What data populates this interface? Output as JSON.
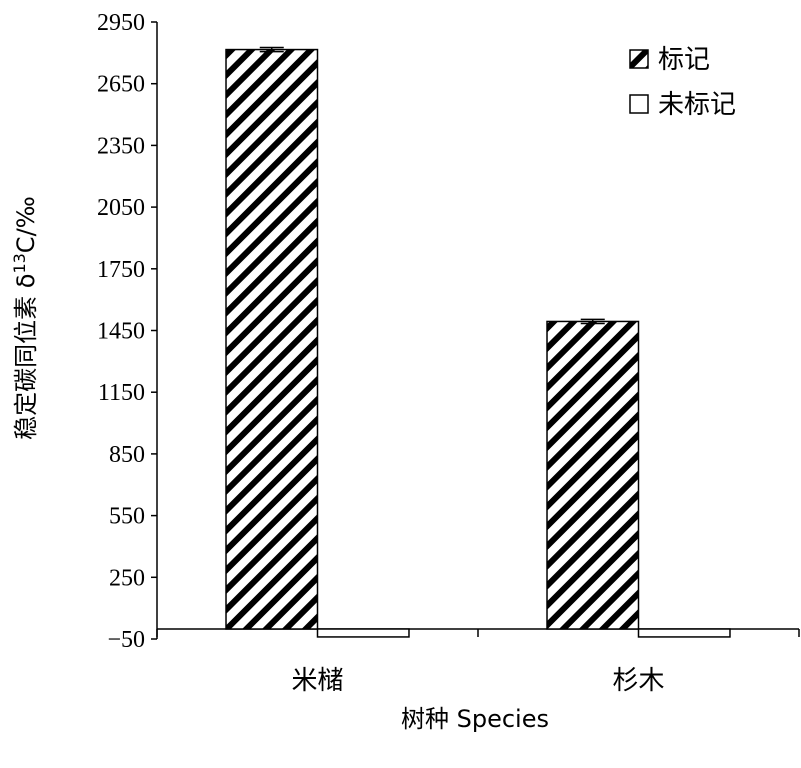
{
  "chart_data": {
    "type": "bar",
    "categories": [
      "米槠",
      "杉木"
    ],
    "series": [
      {
        "name": "标记",
        "pattern": "hatch",
        "values": [
          2816,
          1494
        ],
        "errors": [
          10,
          10
        ]
      },
      {
        "name": "未标记",
        "pattern": "solid-white",
        "values": [
          -40,
          -40
        ],
        "errors": [
          0,
          0
        ]
      }
    ],
    "xlabel": "树种 Species",
    "ylabel": "稳定碳同位素 δ13C/‰",
    "ylim": [
      -50,
      2950
    ],
    "yticks": [
      -50,
      250,
      550,
      850,
      1150,
      1450,
      1750,
      2050,
      2350,
      2650,
      2950
    ],
    "ytick_labels": [
      "−50",
      "250",
      "550",
      "850",
      "1150",
      "1450",
      "1750",
      "2050",
      "2350",
      "2650",
      "2950"
    ],
    "grid": false,
    "legend_position": "top-right",
    "colors": {
      "bar_stroke": "#000000",
      "hatch": "#000000",
      "background": "#ffffff"
    }
  }
}
